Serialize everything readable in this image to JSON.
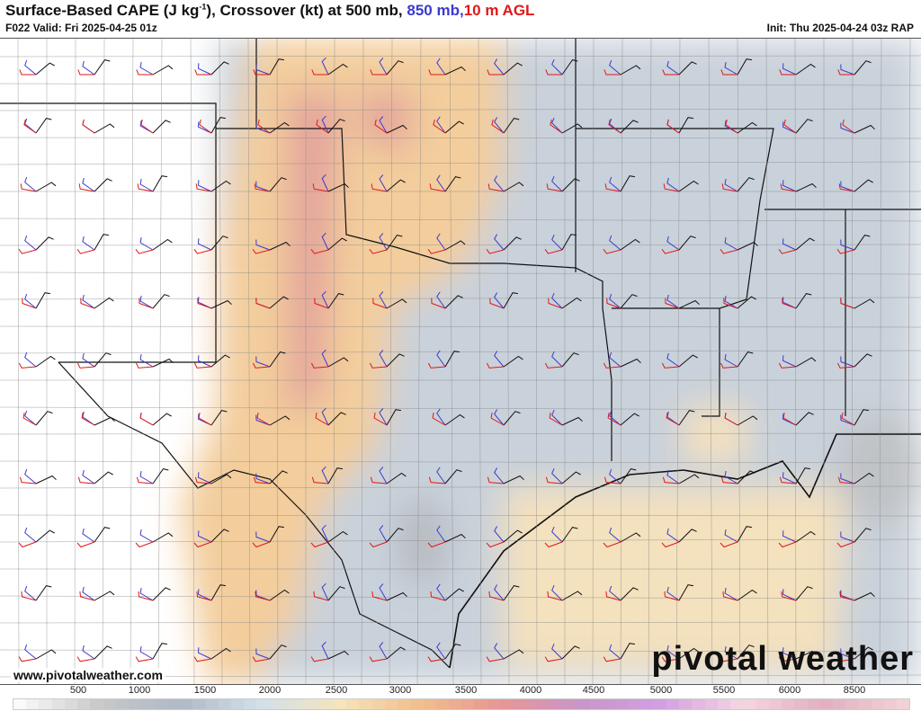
{
  "header": {
    "title_main": "Surface-Based CAPE (J kg",
    "title_sup": "-1",
    "title_mid": "), Crossover (kt) at 500 mb, ",
    "title_850": "850 mb,",
    "title_10m": "10 m AGL",
    "valid": "F022 Valid: Fri 2025-04-25 01z",
    "init": "Init: Thu 2025-04-24 03z RAP"
  },
  "footer": {
    "url": "www.pivotalweather.com",
    "logo": "pivotal weather"
  },
  "colorbar": {
    "labels": [
      "500",
      "1000",
      "1500",
      "2000",
      "2500",
      "3000",
      "3500",
      "4000",
      "4500",
      "5000",
      "5500",
      "6000",
      "8500"
    ]
  },
  "colors": {
    "wind_500mb": "#111111",
    "wind_850mb": "#3a3ad0",
    "wind_10m": "#e01818",
    "cape_low": "#c9d1da",
    "cape_mid": "#f3cd9c",
    "cape_high": "#e4a59c"
  }
}
